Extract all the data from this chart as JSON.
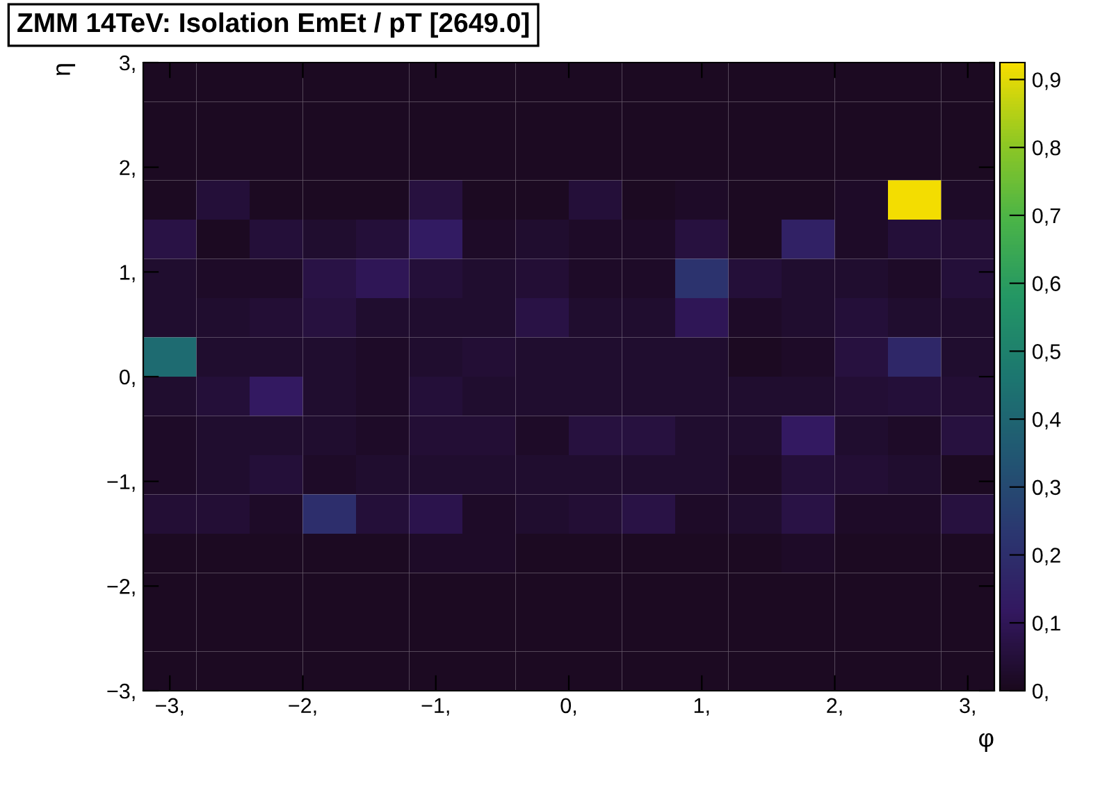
{
  "chart_data": {
    "type": "heatmap",
    "title": "ZMM 14TeV: Isolation EmEt / pT [2649.0]",
    "xlabel": "φ",
    "ylabel": "η",
    "xlim": [
      -3.2,
      3.2
    ],
    "ylim": [
      -3,
      3
    ],
    "xticks": [
      {
        "value": -3,
        "label": "−3,"
      },
      {
        "value": -2,
        "label": "−2,"
      },
      {
        "value": -1,
        "label": "−1,"
      },
      {
        "value": 0,
        "label": "0,"
      },
      {
        "value": 1,
        "label": "1,"
      },
      {
        "value": 2,
        "label": "2,"
      },
      {
        "value": 3,
        "label": "3,"
      }
    ],
    "yticks": [
      {
        "value": -3,
        "label": "−3,"
      },
      {
        "value": -2,
        "label": "−2,"
      },
      {
        "value": -1,
        "label": "−1,"
      },
      {
        "value": 0,
        "label": "0,"
      },
      {
        "value": 1,
        "label": "1,"
      },
      {
        "value": 2,
        "label": "2,"
      },
      {
        "value": 3,
        "label": "3,"
      }
    ],
    "clim": [
      0,
      0.925
    ],
    "cticks": [
      {
        "value": 0,
        "label": "0,"
      },
      {
        "value": 0.1,
        "label": "0,1"
      },
      {
        "value": 0.2,
        "label": "0,2"
      },
      {
        "value": 0.3,
        "label": "0,3"
      },
      {
        "value": 0.4,
        "label": "0,4"
      },
      {
        "value": 0.5,
        "label": "0,5"
      },
      {
        "value": 0.6,
        "label": "0,6"
      },
      {
        "value": 0.7,
        "label": "0,7"
      },
      {
        "value": 0.8,
        "label": "0,8"
      },
      {
        "value": 0.9,
        "label": "0,9"
      }
    ],
    "grid": false,
    "cells": [
      [
        0.01,
        0.01,
        0.01,
        0.01,
        0.01,
        0.01,
        0.01,
        0.01,
        0.01,
        0.01,
        0.01,
        0.01,
        0.01,
        0.01,
        0.01,
        0.01
      ],
      [
        0.01,
        0.01,
        0.01,
        0.01,
        0.01,
        0.01,
        0.01,
        0.01,
        0.01,
        0.01,
        0.01,
        0.01,
        0.01,
        0.01,
        0.01,
        0.01
      ],
      [
        0.01,
        0.01,
        0.01,
        0.01,
        0.01,
        0.01,
        0.01,
        0.01,
        0.01,
        0.01,
        0.01,
        0.01,
        0.01,
        0.01,
        0.01,
        0.01
      ],
      [
        0.01,
        0.05,
        0.01,
        0.01,
        0.01,
        0.06,
        0.01,
        0.01,
        0.05,
        0.01,
        0.02,
        0.01,
        0.01,
        0.02,
        0.92,
        0.02
      ],
      [
        0.07,
        0.01,
        0.05,
        0.03,
        0.05,
        0.13,
        0.02,
        0.03,
        0.02,
        0.02,
        0.06,
        0.01,
        0.15,
        0.02,
        0.05,
        0.04
      ],
      [
        0.03,
        0.02,
        0.02,
        0.07,
        0.1,
        0.05,
        0.03,
        0.04,
        0.02,
        0.02,
        0.22,
        0.05,
        0.03,
        0.03,
        0.02,
        0.05
      ],
      [
        0.03,
        0.03,
        0.04,
        0.06,
        0.03,
        0.03,
        0.03,
        0.07,
        0.03,
        0.03,
        0.1,
        0.02,
        0.03,
        0.05,
        0.03,
        0.03
      ],
      [
        0.42,
        0.03,
        0.03,
        0.03,
        0.02,
        0.03,
        0.04,
        0.03,
        0.03,
        0.03,
        0.03,
        0.01,
        0.02,
        0.06,
        0.17,
        0.03
      ],
      [
        0.03,
        0.05,
        0.12,
        0.03,
        0.02,
        0.05,
        0.03,
        0.03,
        0.03,
        0.03,
        0.03,
        0.03,
        0.03,
        0.04,
        0.05,
        0.04
      ],
      [
        0.02,
        0.03,
        0.03,
        0.03,
        0.02,
        0.04,
        0.04,
        0.02,
        0.06,
        0.06,
        0.03,
        0.03,
        0.12,
        0.03,
        0.02,
        0.06
      ],
      [
        0.02,
        0.03,
        0.05,
        0.02,
        0.03,
        0.03,
        0.03,
        0.03,
        0.03,
        0.03,
        0.03,
        0.02,
        0.05,
        0.04,
        0.03,
        0.01
      ],
      [
        0.04,
        0.04,
        0.02,
        0.2,
        0.05,
        0.08,
        0.02,
        0.03,
        0.04,
        0.07,
        0.02,
        0.03,
        0.07,
        0.02,
        0.02,
        0.06
      ],
      [
        0.01,
        0.01,
        0.01,
        0.01,
        0.01,
        0.02,
        0.02,
        0.01,
        0.01,
        0.01,
        0.01,
        0.01,
        0.02,
        0.01,
        0.01,
        0.01
      ],
      [
        0.01,
        0.01,
        0.01,
        0.01,
        0.01,
        0.01,
        0.01,
        0.01,
        0.01,
        0.01,
        0.01,
        0.01,
        0.01,
        0.01,
        0.01,
        0.01
      ],
      [
        0.01,
        0.01,
        0.01,
        0.01,
        0.01,
        0.01,
        0.01,
        0.01,
        0.01,
        0.01,
        0.01,
        0.01,
        0.01,
        0.01,
        0.01,
        0.01
      ],
      [
        0.01,
        0.01,
        0.01,
        0.01,
        0.01,
        0.01,
        0.01,
        0.01,
        0.01,
        0.01,
        0.01,
        0.01,
        0.01,
        0.01,
        0.01,
        0.01
      ]
    ]
  }
}
